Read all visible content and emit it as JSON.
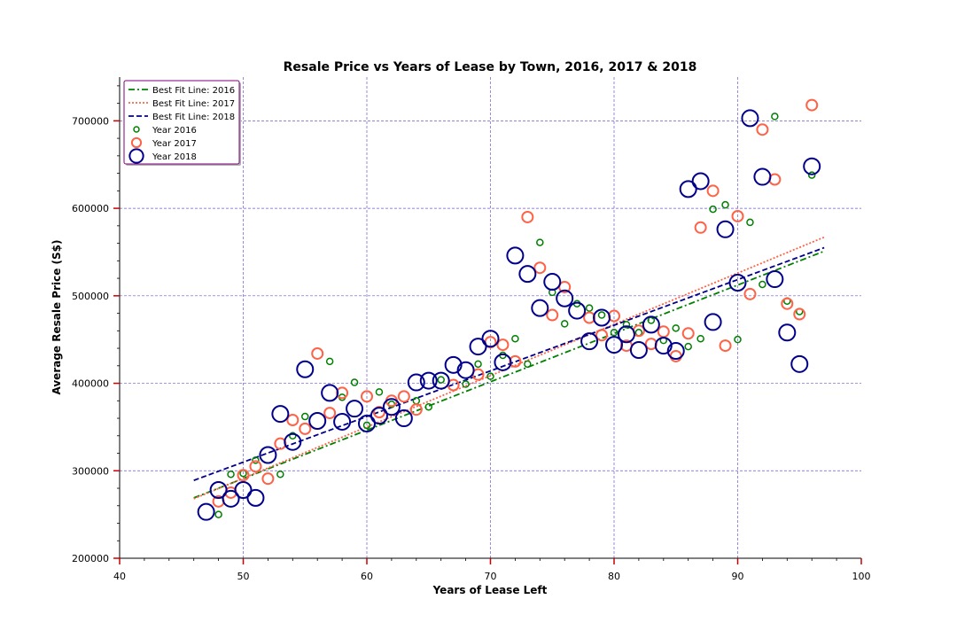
{
  "chart_data": {
    "type": "scatter",
    "title": "Resale Price vs Years of Lease by Town, 2016, 2017 & 2018",
    "xlabel": "Years of Lease Left",
    "ylabel": "Average Resale Price (S$)",
    "xlim": [
      40,
      100
    ],
    "ylim": [
      200000,
      750000
    ],
    "xticks": [
      40,
      50,
      60,
      70,
      80,
      90,
      100
    ],
    "yticks": [
      200000,
      300000,
      400000,
      500000,
      600000,
      700000
    ],
    "grid": true,
    "legend_position": "top-left",
    "lines": [
      {
        "name": "Best Fit Line: 2016",
        "color": "#008000",
        "dash": "dash-dot",
        "x": [
          46,
          97
        ],
        "y": [
          269000,
          551000
        ]
      },
      {
        "name": "Best Fit Line: 2017",
        "color": "#ff6347",
        "dash": "dotted",
        "x": [
          46,
          97
        ],
        "y": [
          268000,
          567000
        ]
      },
      {
        "name": "Best Fit Line: 2018",
        "color": "#00008b",
        "dash": "dashed",
        "x": [
          46,
          97
        ],
        "y": [
          289000,
          555000
        ]
      }
    ],
    "series": [
      {
        "name": "Year 2016",
        "color": "#008000",
        "marker_size": "small",
        "points": [
          [
            48,
            250000
          ],
          [
            49,
            296000
          ],
          [
            50,
            297000
          ],
          [
            51,
            312000
          ],
          [
            53,
            296000
          ],
          [
            54,
            340000
          ],
          [
            55,
            362000
          ],
          [
            57,
            425000
          ],
          [
            58,
            384000
          ],
          [
            59,
            401000
          ],
          [
            60,
            352000
          ],
          [
            61,
            390000
          ],
          [
            62,
            376000
          ],
          [
            64,
            380000
          ],
          [
            65,
            373000
          ],
          [
            66,
            404000
          ],
          [
            68,
            399000
          ],
          [
            69,
            422000
          ],
          [
            70,
            408000
          ],
          [
            71,
            432000
          ],
          [
            72,
            451000
          ],
          [
            73,
            422000
          ],
          [
            74,
            561000
          ],
          [
            75,
            504000
          ],
          [
            76,
            468000
          ],
          [
            77,
            491000
          ],
          [
            78,
            486000
          ],
          [
            79,
            478000
          ],
          [
            80,
            458000
          ],
          [
            81,
            467000
          ],
          [
            82,
            458000
          ],
          [
            83,
            472000
          ],
          [
            84,
            449000
          ],
          [
            85,
            463000
          ],
          [
            86,
            442000
          ],
          [
            87,
            451000
          ],
          [
            88,
            599000
          ],
          [
            89,
            604000
          ],
          [
            90,
            450000
          ],
          [
            91,
            584000
          ],
          [
            92,
            513000
          ],
          [
            93,
            705000
          ],
          [
            94,
            494000
          ],
          [
            95,
            482000
          ],
          [
            96,
            638000
          ]
        ]
      },
      {
        "name": "Year 2017",
        "color": "#ff6347",
        "marker_size": "medium",
        "points": [
          [
            48,
            265000
          ],
          [
            49,
            275000
          ],
          [
            50,
            295000
          ],
          [
            51,
            305000
          ],
          [
            52,
            291000
          ],
          [
            53,
            331000
          ],
          [
            54,
            358000
          ],
          [
            55,
            348000
          ],
          [
            56,
            434000
          ],
          [
            57,
            366000
          ],
          [
            58,
            389000
          ],
          [
            60,
            385000
          ],
          [
            61,
            367000
          ],
          [
            62,
            380000
          ],
          [
            63,
            385000
          ],
          [
            64,
            370000
          ],
          [
            67,
            398000
          ],
          [
            69,
            410000
          ],
          [
            70,
            447000
          ],
          [
            71,
            444000
          ],
          [
            72,
            425000
          ],
          [
            73,
            590000
          ],
          [
            74,
            532000
          ],
          [
            75,
            478000
          ],
          [
            76,
            510000
          ],
          [
            78,
            475000
          ],
          [
            79,
            455000
          ],
          [
            80,
            477000
          ],
          [
            81,
            443000
          ],
          [
            82,
            460000
          ],
          [
            83,
            445000
          ],
          [
            84,
            459000
          ],
          [
            85,
            431000
          ],
          [
            86,
            457000
          ],
          [
            87,
            578000
          ],
          [
            88,
            620000
          ],
          [
            89,
            443000
          ],
          [
            90,
            591000
          ],
          [
            91,
            502000
          ],
          [
            92,
            690000
          ],
          [
            93,
            633000
          ],
          [
            94,
            491000
          ],
          [
            95,
            479000
          ],
          [
            96,
            718000
          ]
        ]
      },
      {
        "name": "Year 2018",
        "color": "#00008b",
        "marker_size": "large",
        "points": [
          [
            47,
            253000
          ],
          [
            48,
            278000
          ],
          [
            49,
            268000
          ],
          [
            50,
            278000
          ],
          [
            51,
            269000
          ],
          [
            52,
            318000
          ],
          [
            53,
            365000
          ],
          [
            54,
            333000
          ],
          [
            55,
            416000
          ],
          [
            56,
            357000
          ],
          [
            57,
            389000
          ],
          [
            58,
            356000
          ],
          [
            59,
            371000
          ],
          [
            60,
            354000
          ],
          [
            61,
            363000
          ],
          [
            62,
            373000
          ],
          [
            63,
            360000
          ],
          [
            64,
            401000
          ],
          [
            65,
            403000
          ],
          [
            66,
            403000
          ],
          [
            67,
            421000
          ],
          [
            68,
            415000
          ],
          [
            69,
            442000
          ],
          [
            70,
            451000
          ],
          [
            71,
            424000
          ],
          [
            72,
            546000
          ],
          [
            73,
            525000
          ],
          [
            74,
            486000
          ],
          [
            75,
            516000
          ],
          [
            76,
            497000
          ],
          [
            77,
            483000
          ],
          [
            78,
            448000
          ],
          [
            79,
            475000
          ],
          [
            80,
            444000
          ],
          [
            81,
            456000
          ],
          [
            82,
            438000
          ],
          [
            83,
            467000
          ],
          [
            84,
            443000
          ],
          [
            85,
            437000
          ],
          [
            86,
            622000
          ],
          [
            87,
            631000
          ],
          [
            88,
            470000
          ],
          [
            89,
            576000
          ],
          [
            90,
            515000
          ],
          [
            91,
            703000
          ],
          [
            92,
            636000
          ],
          [
            93,
            519000
          ],
          [
            94,
            458000
          ],
          [
            95,
            422000
          ],
          [
            96,
            648000
          ]
        ]
      }
    ]
  }
}
